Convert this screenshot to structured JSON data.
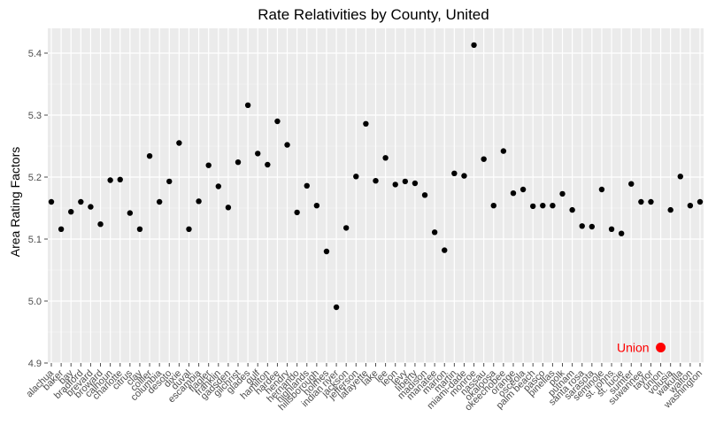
{
  "chart_data": {
    "type": "scatter",
    "title": "Rate Relativities by County, United",
    "xlabel": "",
    "ylabel": "Area Rating Factors",
    "ylim": [
      4.9,
      5.44
    ],
    "yticks": [
      4.9,
      5.0,
      5.1,
      5.2,
      5.3,
      5.4
    ],
    "grid": true,
    "legend": "none",
    "colors": {
      "panel": "#ebebeb",
      "grid_major": "#ffffff",
      "point": "#000000",
      "highlight": "#ff0000",
      "tick": "#4d4d4d"
    },
    "categories": [
      "alachua",
      "baker",
      "bay",
      "bradford",
      "brevard",
      "broward",
      "calhoun",
      "charlotte",
      "citrus",
      "clay",
      "collier",
      "columbia",
      "desoto",
      "dixie",
      "duval",
      "escambia",
      "flagler",
      "franklin",
      "gadsden",
      "gilchrist",
      "glades",
      "gulf",
      "hamilton",
      "hardee",
      "hendry",
      "hernando",
      "highlands",
      "hillsborough",
      "holmes",
      "indian river",
      "jackson",
      "jefferson",
      "lafayette",
      "lake",
      "lee",
      "leon",
      "levy",
      "liberty",
      "madison",
      "manatee",
      "marion",
      "martin",
      "miami-dade",
      "monroe",
      "nassau",
      "okaloosa",
      "okeechobee",
      "orange",
      "osceola",
      "palm beach",
      "pasco",
      "pinellas",
      "polk",
      "putnam",
      "santa rosa",
      "sarasota",
      "seminole",
      "st. johns",
      "st. lucie",
      "sumter",
      "suwannee",
      "taylor",
      "union",
      "volusia",
      "wakulla",
      "walton",
      "washington"
    ],
    "values": [
      5.16,
      5.116,
      5.144,
      5.16,
      5.152,
      5.124,
      5.195,
      5.196,
      5.142,
      5.116,
      5.234,
      5.16,
      5.193,
      5.255,
      5.116,
      5.161,
      5.219,
      5.185,
      5.151,
      5.224,
      5.316,
      5.238,
      5.22,
      5.29,
      5.252,
      5.143,
      5.186,
      5.154,
      5.08,
      4.99,
      5.118,
      5.201,
      5.286,
      5.194,
      5.231,
      5.188,
      5.193,
      5.19,
      5.171,
      5.111,
      5.082,
      5.206,
      5.202,
      5.413,
      5.229,
      5.154,
      5.242,
      5.174,
      5.18,
      5.153,
      5.154,
      5.154,
      5.173,
      5.147,
      5.121,
      5.12,
      5.18,
      5.116,
      5.109,
      5.189,
      5.16,
      5.16,
      null,
      5.147,
      5.201,
      5.154,
      5.16
    ],
    "highlight": {
      "label": "Union",
      "value": 4.925
    }
  }
}
